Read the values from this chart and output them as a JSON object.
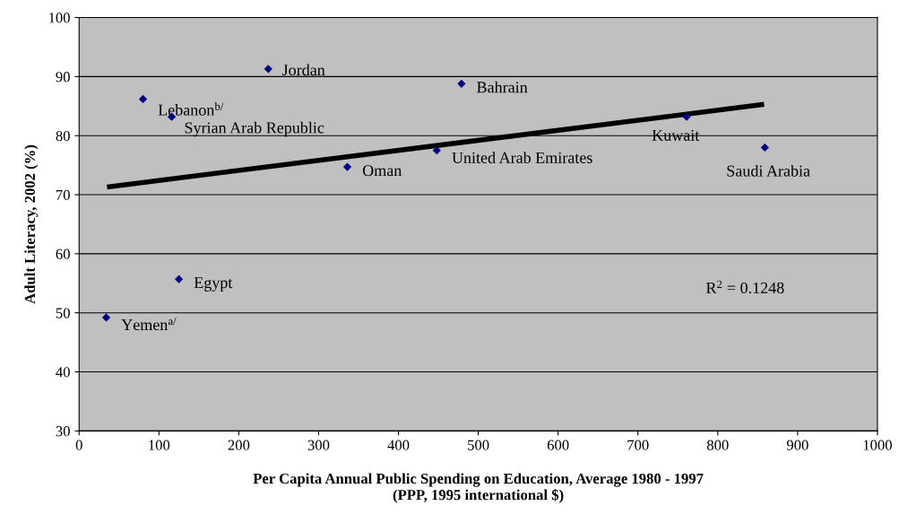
{
  "chart_data": {
    "type": "scatter",
    "xlabel": "Per Capita Annual Public Spending on Education, Average 1980 - 1997\n(PPP, 1995 international $)",
    "ylabel": "Adult Literacy, 2002 (%)",
    "xlim": [
      0,
      1000
    ],
    "xticks": [
      0,
      100,
      200,
      300,
      400,
      500,
      600,
      700,
      800,
      900,
      1000
    ],
    "ylim": [
      30,
      100
    ],
    "yticks": [
      30,
      40,
      50,
      60,
      70,
      80,
      90,
      100
    ],
    "grid": "y",
    "marker": "diamond",
    "legend": false,
    "series": [
      {
        "color": "#000080",
        "x": [
          34,
          80,
          116,
          125,
          237,
          336,
          448,
          479,
          761,
          859
        ],
        "values": [
          49.2,
          86.2,
          83.2,
          55.7,
          91.3,
          74.7,
          77.5,
          88.8,
          83.2,
          78
        ]
      },
      {
        "type": "line",
        "marker": "none",
        "color": "#000000",
        "x": [
          35,
          858
        ],
        "values": [
          71.3,
          85.3
        ]
      }
    ],
    "annotations": [
      {
        "text": "Yemen$^{a/}$",
        "x": 34,
        "y": 49.2
      },
      {
        "text": "Lebanon$^{b/}$",
        "x": 80,
        "y": 86.2
      },
      {
        "text": "Syrian Arab Republic",
        "x": 116,
        "y": 83.2
      },
      {
        "text": "Egypt",
        "x": 125,
        "y": 55.7
      },
      {
        "text": "Jordan",
        "x": 237,
        "y": 91.3
      },
      {
        "text": "Oman",
        "x": 336,
        "y": 74.7
      },
      {
        "text": "United Arab Emirates",
        "x": 448,
        "y": 77.5
      },
      {
        "text": "Bahrain",
        "x": 479,
        "y": 88.8
      },
      {
        "text": "Kuwait",
        "x": 761,
        "y": 83.2
      },
      {
        "text": "Saudi Arabia",
        "x": 859,
        "y": 78
      },
      "R$^{2}$ = 0.1248"
    ]
  }
}
